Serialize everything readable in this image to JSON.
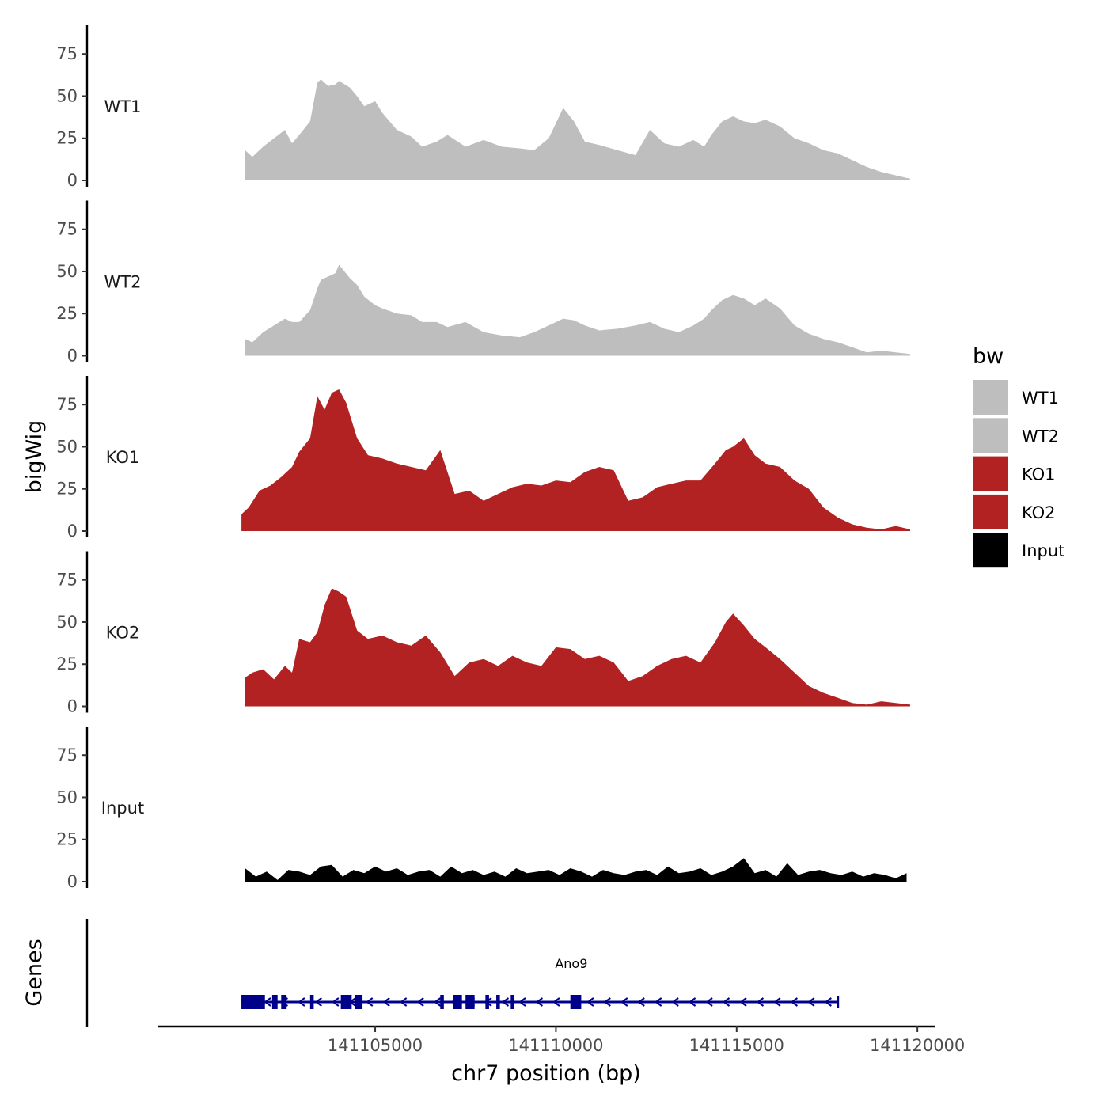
{
  "chart_data": {
    "type": "area",
    "ylabel": "bigWig",
    "xlabel": "chr7 position (bp)",
    "ylim": [
      0,
      92
    ],
    "yticks": [
      0,
      25,
      50,
      75
    ],
    "xlim": [
      141099000,
      141120500
    ],
    "xticks": [
      141105000,
      141110000,
      141115000,
      141120000
    ],
    "xtick_labels": [
      "141105000",
      "141110000",
      "141115000",
      "141120000"
    ],
    "genes_label": "Genes",
    "legend": {
      "title": "bw",
      "entries": [
        {
          "name": "WT1",
          "color": "#bebebe"
        },
        {
          "name": "WT2",
          "color": "#bebebe"
        },
        {
          "name": "KO1",
          "color": "#b22222"
        },
        {
          "name": "KO2",
          "color": "#b22222"
        },
        {
          "name": "Input",
          "color": "#000000"
        }
      ]
    },
    "tracks": [
      {
        "name": "WT1",
        "color": "#bebebe",
        "x": [
          141101400,
          141101600,
          141101900,
          141102200,
          141102500,
          141102700,
          141102900,
          141103200,
          141103400,
          141103500,
          141103700,
          141103900,
          141104000,
          141104300,
          141104500,
          141104700,
          141105000,
          141105200,
          141105600,
          141106000,
          141106300,
          141106700,
          141107000,
          141107500,
          141108000,
          141108500,
          141109000,
          141109400,
          141109800,
          141110200,
          141110500,
          141110800,
          141111200,
          141111700,
          141112200,
          141112600,
          141113000,
          141113400,
          141113800,
          141114100,
          141114300,
          141114600,
          141114900,
          141115200,
          141115500,
          141115800,
          141116200,
          141116600,
          141117000,
          141117400,
          141117800,
          141118200,
          141118600,
          141119000,
          141119400,
          141119800
        ],
        "values": [
          18,
          14,
          20,
          25,
          30,
          22,
          27,
          35,
          58,
          60,
          56,
          57,
          59,
          55,
          50,
          44,
          47,
          40,
          30,
          26,
          20,
          23,
          27,
          20,
          24,
          20,
          19,
          18,
          25,
          43,
          35,
          23,
          21,
          18,
          15,
          30,
          22,
          20,
          24,
          20,
          27,
          35,
          38,
          35,
          34,
          36,
          32,
          25,
          22,
          18,
          16,
          12,
          8,
          5,
          3,
          1
        ]
      },
      {
        "name": "WT2",
        "color": "#bebebe",
        "x": [
          141101400,
          141101600,
          141101900,
          141102200,
          141102500,
          141102700,
          141102900,
          141103200,
          141103400,
          141103500,
          141103700,
          141103900,
          141104000,
          141104300,
          141104500,
          141104700,
          141105000,
          141105200,
          141105600,
          141106000,
          141106300,
          141106700,
          141107000,
          141107500,
          141108000,
          141108500,
          141109000,
          141109400,
          141109800,
          141110200,
          141110500,
          141110800,
          141111200,
          141111700,
          141112200,
          141112600,
          141113000,
          141113400,
          141113800,
          141114100,
          141114300,
          141114600,
          141114900,
          141115200,
          141115500,
          141115800,
          141116200,
          141116600,
          141117000,
          141117400,
          141117800,
          141118200,
          141118600,
          141119000,
          141119400,
          141119800
        ],
        "values": [
          10,
          8,
          14,
          18,
          22,
          20,
          20,
          27,
          40,
          45,
          47,
          49,
          54,
          46,
          42,
          35,
          30,
          28,
          25,
          24,
          20,
          20,
          17,
          20,
          14,
          12,
          11,
          14,
          18,
          22,
          21,
          18,
          15,
          16,
          18,
          20,
          16,
          14,
          18,
          22,
          27,
          33,
          36,
          34,
          30,
          34,
          28,
          18,
          13,
          10,
          8,
          5,
          2,
          3,
          2,
          1
        ]
      },
      {
        "name": "KO1",
        "color": "#b22222",
        "x": [
          141101300,
          141101500,
          141101800,
          141102100,
          141102400,
          141102700,
          141102900,
          141103200,
          141103400,
          141103600,
          141103800,
          141104000,
          141104200,
          141104500,
          141104800,
          141105200,
          141105600,
          141106000,
          141106400,
          141106800,
          141107200,
          141107600,
          141108000,
          141108400,
          141108800,
          141109200,
          141109600,
          141110000,
          141110400,
          141110800,
          141111200,
          141111600,
          141112000,
          141112400,
          141112800,
          141113200,
          141113600,
          141114000,
          141114400,
          141114700,
          141114900,
          141115200,
          141115500,
          141115800,
          141116200,
          141116600,
          141117000,
          141117400,
          141117800,
          141118200,
          141118600,
          141119000,
          141119400,
          141119800
        ],
        "values": [
          10,
          14,
          24,
          27,
          32,
          38,
          47,
          55,
          80,
          72,
          82,
          84,
          76,
          55,
          45,
          43,
          40,
          38,
          36,
          48,
          22,
          24,
          18,
          22,
          26,
          28,
          27,
          30,
          29,
          35,
          38,
          36,
          18,
          20,
          26,
          28,
          30,
          30,
          40,
          48,
          50,
          55,
          45,
          40,
          38,
          30,
          25,
          14,
          8,
          4,
          2,
          1,
          3,
          1
        ]
      },
      {
        "name": "KO2",
        "color": "#b22222",
        "x": [
          141101400,
          141101600,
          141101900,
          141102200,
          141102500,
          141102700,
          141102900,
          141103200,
          141103400,
          141103600,
          141103800,
          141104000,
          141104200,
          141104500,
          141104800,
          141105200,
          141105600,
          141106000,
          141106400,
          141106800,
          141107200,
          141107600,
          141108000,
          141108400,
          141108800,
          141109200,
          141109600,
          141110000,
          141110400,
          141110800,
          141111200,
          141111600,
          141112000,
          141112400,
          141112800,
          141113200,
          141113600,
          141114000,
          141114400,
          141114700,
          141114900,
          141115200,
          141115500,
          141115800,
          141116200,
          141116600,
          141117000,
          141117400,
          141117800,
          141118200,
          141118600,
          141119000,
          141119400,
          141119800
        ],
        "values": [
          17,
          20,
          22,
          16,
          24,
          20,
          40,
          38,
          44,
          60,
          70,
          68,
          65,
          45,
          40,
          42,
          38,
          36,
          42,
          32,
          18,
          26,
          28,
          24,
          30,
          26,
          24,
          35,
          34,
          28,
          30,
          26,
          15,
          18,
          24,
          28,
          30,
          26,
          38,
          50,
          55,
          48,
          40,
          35,
          28,
          20,
          12,
          8,
          5,
          2,
          1,
          3,
          2,
          1
        ]
      },
      {
        "name": "Input",
        "color": "#000000",
        "x": [
          141101400,
          141101700,
          141102000,
          141102300,
          141102600,
          141102900,
          141103200,
          141103500,
          141103800,
          141104100,
          141104400,
          141104700,
          141105000,
          141105300,
          141105600,
          141105900,
          141106200,
          141106500,
          141106800,
          141107100,
          141107400,
          141107700,
          141108000,
          141108300,
          141108600,
          141108900,
          141109200,
          141109500,
          141109800,
          141110100,
          141110400,
          141110700,
          141111000,
          141111300,
          141111600,
          141111900,
          141112200,
          141112500,
          141112800,
          141113100,
          141113400,
          141113700,
          141114000,
          141114300,
          141114600,
          141114900,
          141115200,
          141115500,
          141115800,
          141116100,
          141116400,
          141116700,
          141117000,
          141117300,
          141117600,
          141117900,
          141118200,
          141118500,
          141118800,
          141119100,
          141119400,
          141119700
        ],
        "values": [
          8,
          3,
          6,
          1,
          7,
          6,
          4,
          9,
          10,
          3,
          7,
          5,
          9,
          6,
          8,
          4,
          6,
          7,
          3,
          9,
          5,
          7,
          4,
          6,
          3,
          8,
          5,
          6,
          7,
          4,
          8,
          6,
          3,
          7,
          5,
          4,
          6,
          7,
          4,
          9,
          5,
          6,
          8,
          4,
          6,
          9,
          14,
          5,
          7,
          3,
          11,
          4,
          6,
          7,
          5,
          4,
          6,
          3,
          5,
          4,
          2,
          5
        ]
      }
    ],
    "gene": {
      "name": "Ano9",
      "strand": "-",
      "start": 141101300,
      "end": 141117800,
      "exons": [
        [
          141101300,
          141101950
        ],
        [
          141102150,
          141102300
        ],
        [
          141102400,
          141102550
        ],
        [
          141103200,
          141103300
        ],
        [
          141104050,
          141104350
        ],
        [
          141104450,
          141104650
        ],
        [
          141106800,
          141106900
        ],
        [
          141107150,
          141107400
        ],
        [
          141107500,
          141107750
        ],
        [
          141108050,
          141108150
        ],
        [
          141108350,
          141108450
        ],
        [
          141108750,
          141108850
        ],
        [
          141110400,
          141110700
        ]
      ]
    }
  }
}
